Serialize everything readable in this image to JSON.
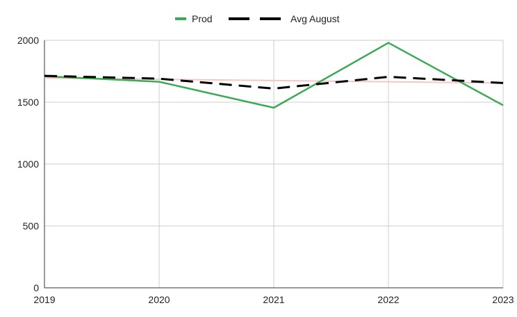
{
  "chart_data": {
    "type": "line",
    "title": "",
    "xlabel": "",
    "ylabel": "",
    "x": [
      "2019",
      "2020",
      "2021",
      "2022",
      "2023"
    ],
    "ylim": [
      0,
      2000
    ],
    "yticks": [
      0,
      500,
      1000,
      1500,
      2000
    ],
    "grid": true,
    "legend_position": "top",
    "series": [
      {
        "name": "Prod",
        "values": [
          1710,
          1665,
          1455,
          1980,
          1475
        ],
        "color": "#3aaa55",
        "style": "solid"
      },
      {
        "name": "Avg August",
        "values": [
          1713,
          1690,
          1610,
          1705,
          1655
        ],
        "color": "#000000",
        "style": "dashed"
      },
      {
        "name": "",
        "values": [
          1695,
          1685,
          1675,
          1665,
          1655
        ],
        "color": "#f4c7c3",
        "style": "solid",
        "role": "trendline"
      }
    ]
  }
}
